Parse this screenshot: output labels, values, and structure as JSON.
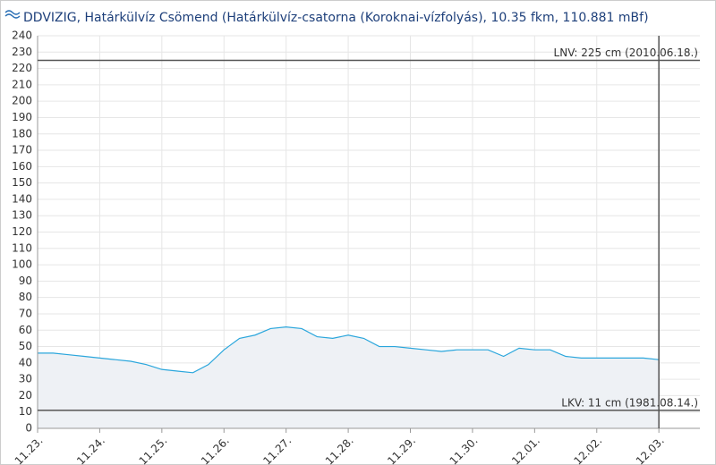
{
  "chart_data": {
    "type": "area",
    "title": "DDVIZIG, Határkülvíz Csömend (Határkülvíz-csatorna (Koroknai-vízfolyás), 10.35 fkm, 110.881 mBf)",
    "x": [
      0,
      0.25,
      0.5,
      0.75,
      1,
      1.25,
      1.5,
      1.75,
      2,
      2.25,
      2.5,
      2.75,
      3,
      3.25,
      3.5,
      3.75,
      4,
      4.25,
      4.5,
      4.75,
      5,
      5.25,
      5.5,
      5.75,
      6,
      6.25,
      6.5,
      6.75,
      7,
      7.25,
      7.5,
      7.75,
      8,
      8.25,
      8.5,
      8.75,
      9,
      9.25,
      9.5,
      9.75,
      10
    ],
    "values": [
      46,
      46,
      45,
      44,
      43,
      42,
      41,
      39,
      36,
      35,
      34,
      39,
      48,
      55,
      57,
      61,
      62,
      61,
      56,
      55,
      57,
      55,
      50,
      50,
      49,
      48,
      47,
      48,
      48,
      48,
      44,
      49,
      48,
      48,
      44,
      43,
      43,
      43,
      43,
      43,
      42
    ],
    "color": "#2aa6dc",
    "fill": "#eef1f5",
    "xlim": [
      0,
      10.66
    ],
    "xticks": [
      {
        "value": 0,
        "label": "11.23."
      },
      {
        "value": 1,
        "label": "11.24."
      },
      {
        "value": 2,
        "label": "11.25."
      },
      {
        "value": 3,
        "label": "11.26."
      },
      {
        "value": 4,
        "label": "11.27."
      },
      {
        "value": 5,
        "label": "11.28."
      },
      {
        "value": 6,
        "label": "11.29."
      },
      {
        "value": 7,
        "label": "11.30."
      },
      {
        "value": 8,
        "label": "12.01."
      },
      {
        "value": 9,
        "label": "12.02."
      },
      {
        "value": 10,
        "label": "12.03."
      }
    ],
    "ylim": [
      0,
      240
    ],
    "yticks": [
      0,
      10,
      20,
      30,
      40,
      50,
      60,
      70,
      80,
      90,
      100,
      110,
      120,
      130,
      140,
      150,
      160,
      170,
      180,
      190,
      200,
      210,
      220,
      230,
      240
    ],
    "grid": true,
    "ref_lines": [
      {
        "label": "LNV: 225 cm (2010.06.18.)",
        "value": 225
      },
      {
        "label": "LKV: 11 cm (1981.08.14.)",
        "value": 11
      }
    ],
    "marker_x": 10
  }
}
